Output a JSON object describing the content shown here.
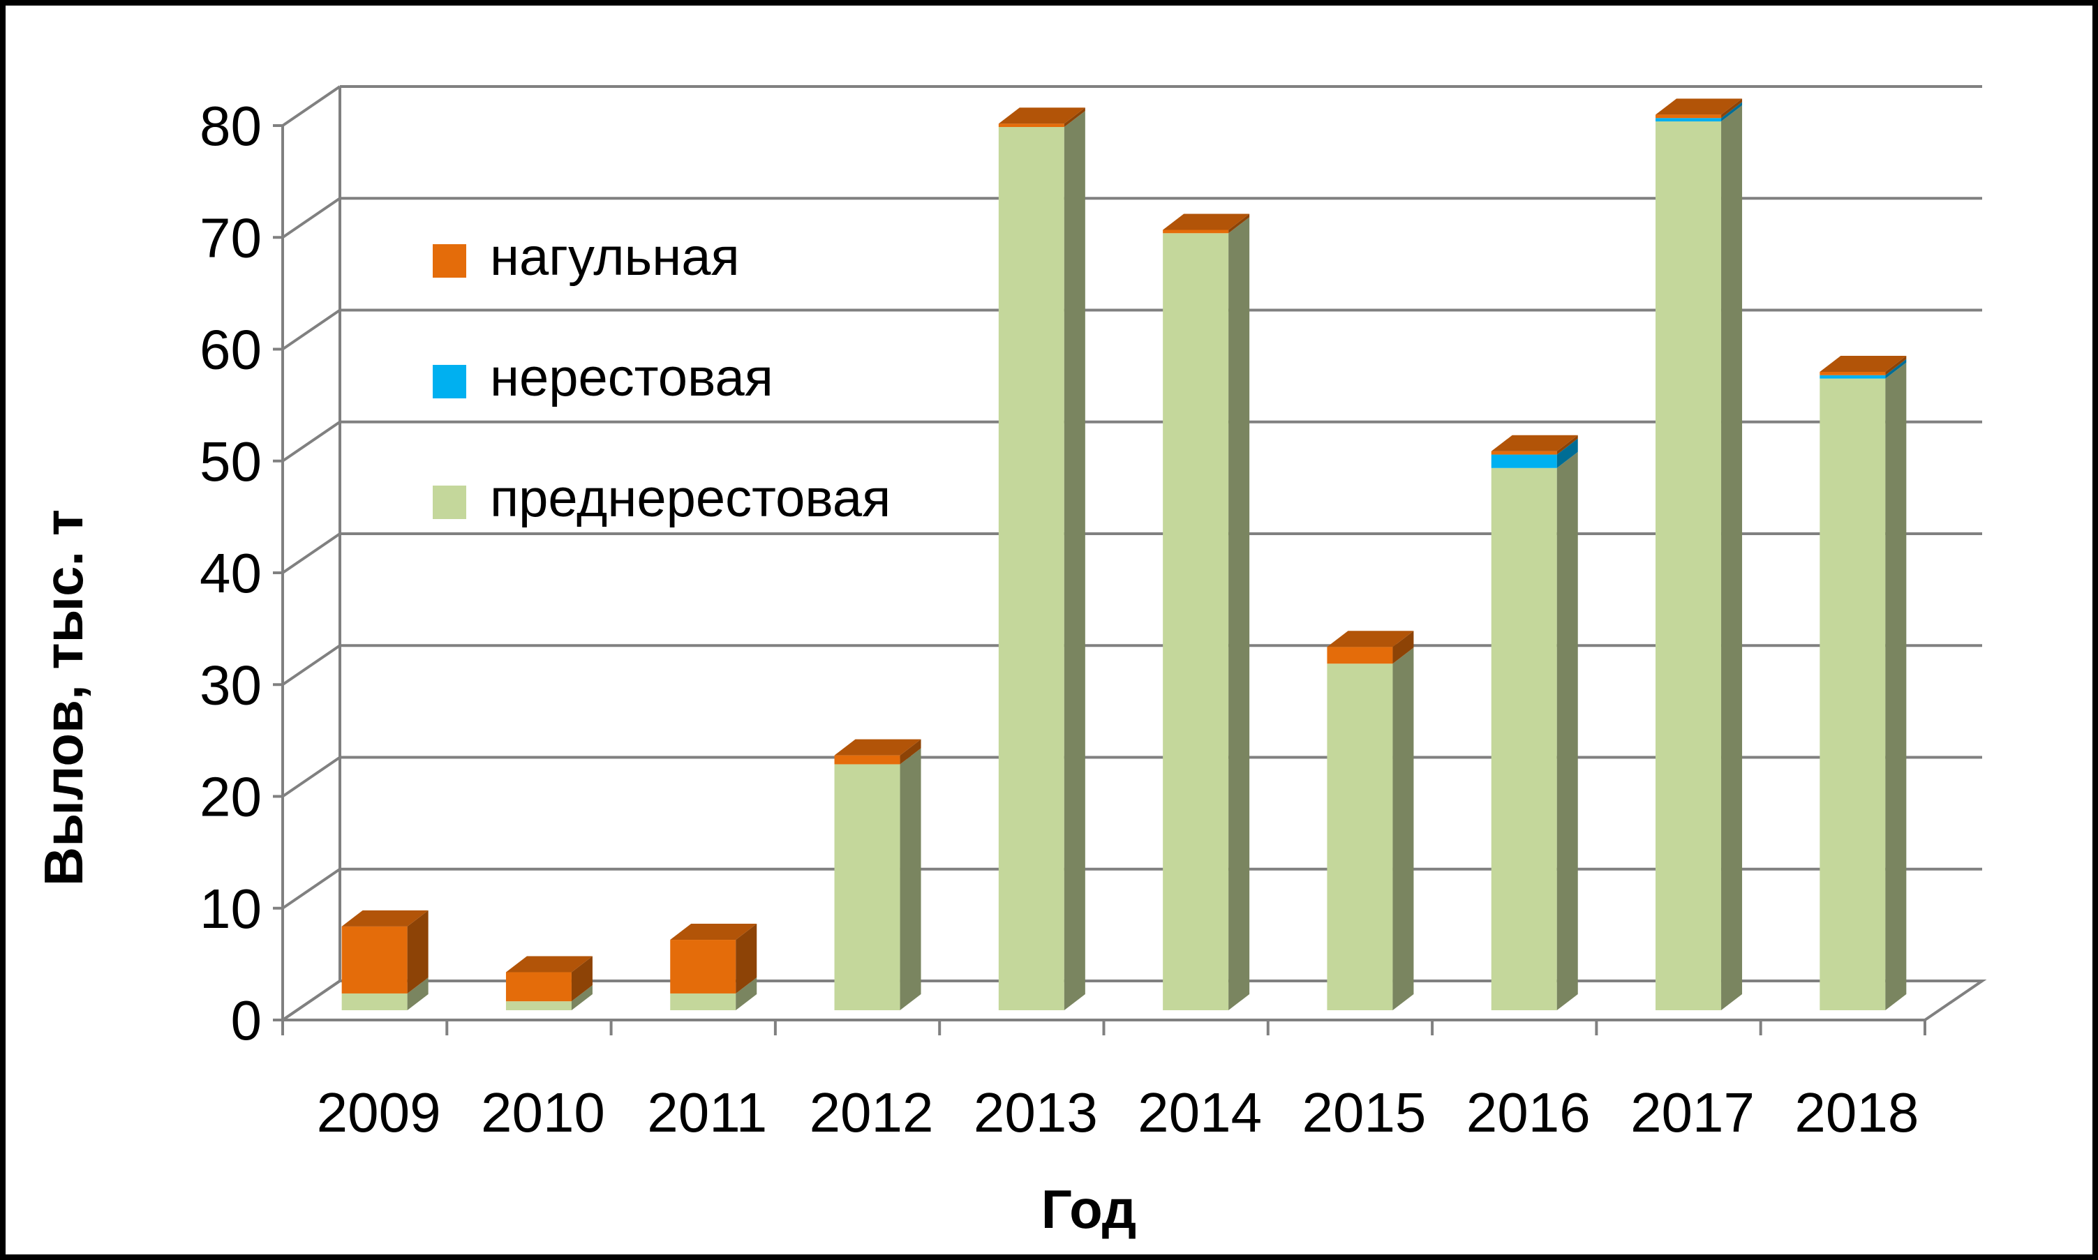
{
  "chart_data": {
    "type": "bar",
    "stacked": true,
    "three_d": true,
    "categories": [
      "2009",
      "2010",
      "2011",
      "2012",
      "2013",
      "2014",
      "2015",
      "2016",
      "2017",
      "2018"
    ],
    "series": [
      {
        "name": "преднерестовая",
        "color": "#c4d79b",
        "values": [
          1.5,
          0.8,
          1.5,
          22,
          79,
          69.5,
          31,
          48.5,
          79.5,
          56.5
        ]
      },
      {
        "name": "нерестовая",
        "color": "#00b0f0",
        "values": [
          0,
          0,
          0,
          0,
          0,
          0,
          0,
          1.2,
          0.3,
          0.3
        ]
      },
      {
        "name": "нагульная",
        "color": "#e46c0a",
        "values": [
          6,
          2.6,
          4.8,
          0.8,
          0.3,
          0.3,
          1.5,
          0.3,
          0.3,
          0.3
        ]
      }
    ],
    "legend": {
      "position": "top-left-inside",
      "order": [
        "нагульная",
        "нерестовая",
        "преднерестовая"
      ]
    },
    "xlabel": "Год",
    "ylabel": "Вылов, тыс. т",
    "ylim": [
      0,
      80
    ],
    "yticks": [
      "0",
      "10",
      "20",
      "30",
      "40",
      "50",
      "60",
      "70",
      "80"
    ],
    "grid": true
  }
}
